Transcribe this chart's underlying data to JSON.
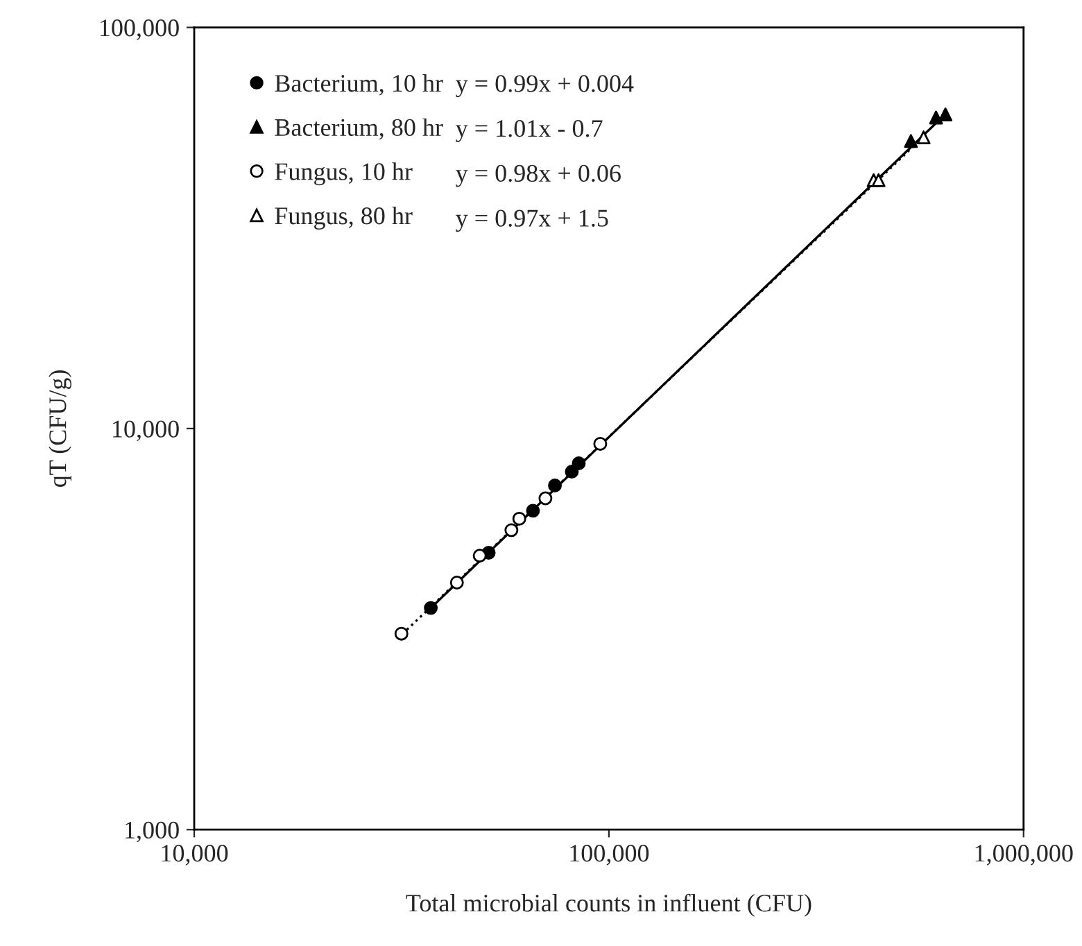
{
  "chart_data": {
    "type": "scatter",
    "xlabel": "Total microbial counts in influent (CFU)",
    "ylabel": "qT (CFU/g)",
    "log": "xy",
    "xlim": [
      10000,
      1000000
    ],
    "ylim": [
      1000,
      100000
    ],
    "xticks": [
      {
        "value": 10000,
        "label": "10,000"
      },
      {
        "value": 100000,
        "label": "100,000"
      },
      {
        "value": 1000000,
        "label": "1,000,000"
      }
    ],
    "yticks": [
      {
        "value": 1000,
        "label": "1,000"
      },
      {
        "value": 10000,
        "label": "10,000"
      },
      {
        "value": 100000,
        "label": "100,000"
      }
    ],
    "grid": false,
    "legend": "top left",
    "series": [
      {
        "name": "Bacterium, 10 hr",
        "color": "#000000",
        "marker": "circle",
        "x": [
          37200,
          51300,
          65600,
          74100,
          81400,
          84600
        ],
        "values": [
          3570,
          4900,
          6240,
          7210,
          7810,
          8190
        ]
      },
      {
        "name": "Bacterium, 80 hr",
        "color": "#000000",
        "marker": "triangle",
        "x": [
          535000,
          615000,
          648000
        ],
        "values": [
          52100,
          59600,
          60700
        ]
      },
      {
        "name": "Fungus, 10 hr",
        "color": "#ffffff",
        "marker": "circle",
        "x": [
          31600,
          43000,
          48800,
          58200,
          60800,
          70300,
          95300
        ],
        "values": [
          3080,
          4130,
          4820,
          5580,
          5960,
          6700,
          9160
        ]
      },
      {
        "name": "Fungus, 80 hr",
        "color": "#ffffff",
        "marker": "triangle",
        "x": [
          435000,
          447000,
          574000
        ],
        "values": [
          41600,
          41600,
          53200
        ]
      },
      {
        "type": "line",
        "color": "#000000",
        "line_style": "solid",
        "x": [
          37000,
          650000
        ],
        "values": [
          3550,
          61000
        ]
      },
      {
        "type": "line",
        "color": "#000000",
        "line_style": "dotted",
        "x": [
          31000,
          580000
        ],
        "values": [
          3000,
          54000
        ]
      }
    ],
    "annotations": [
      "y = 0.99x + 0.004",
      "y = 1.01x - 0.7",
      "y = 0.98x + 0.06",
      "y = 0.97x + 1.5"
    ]
  }
}
